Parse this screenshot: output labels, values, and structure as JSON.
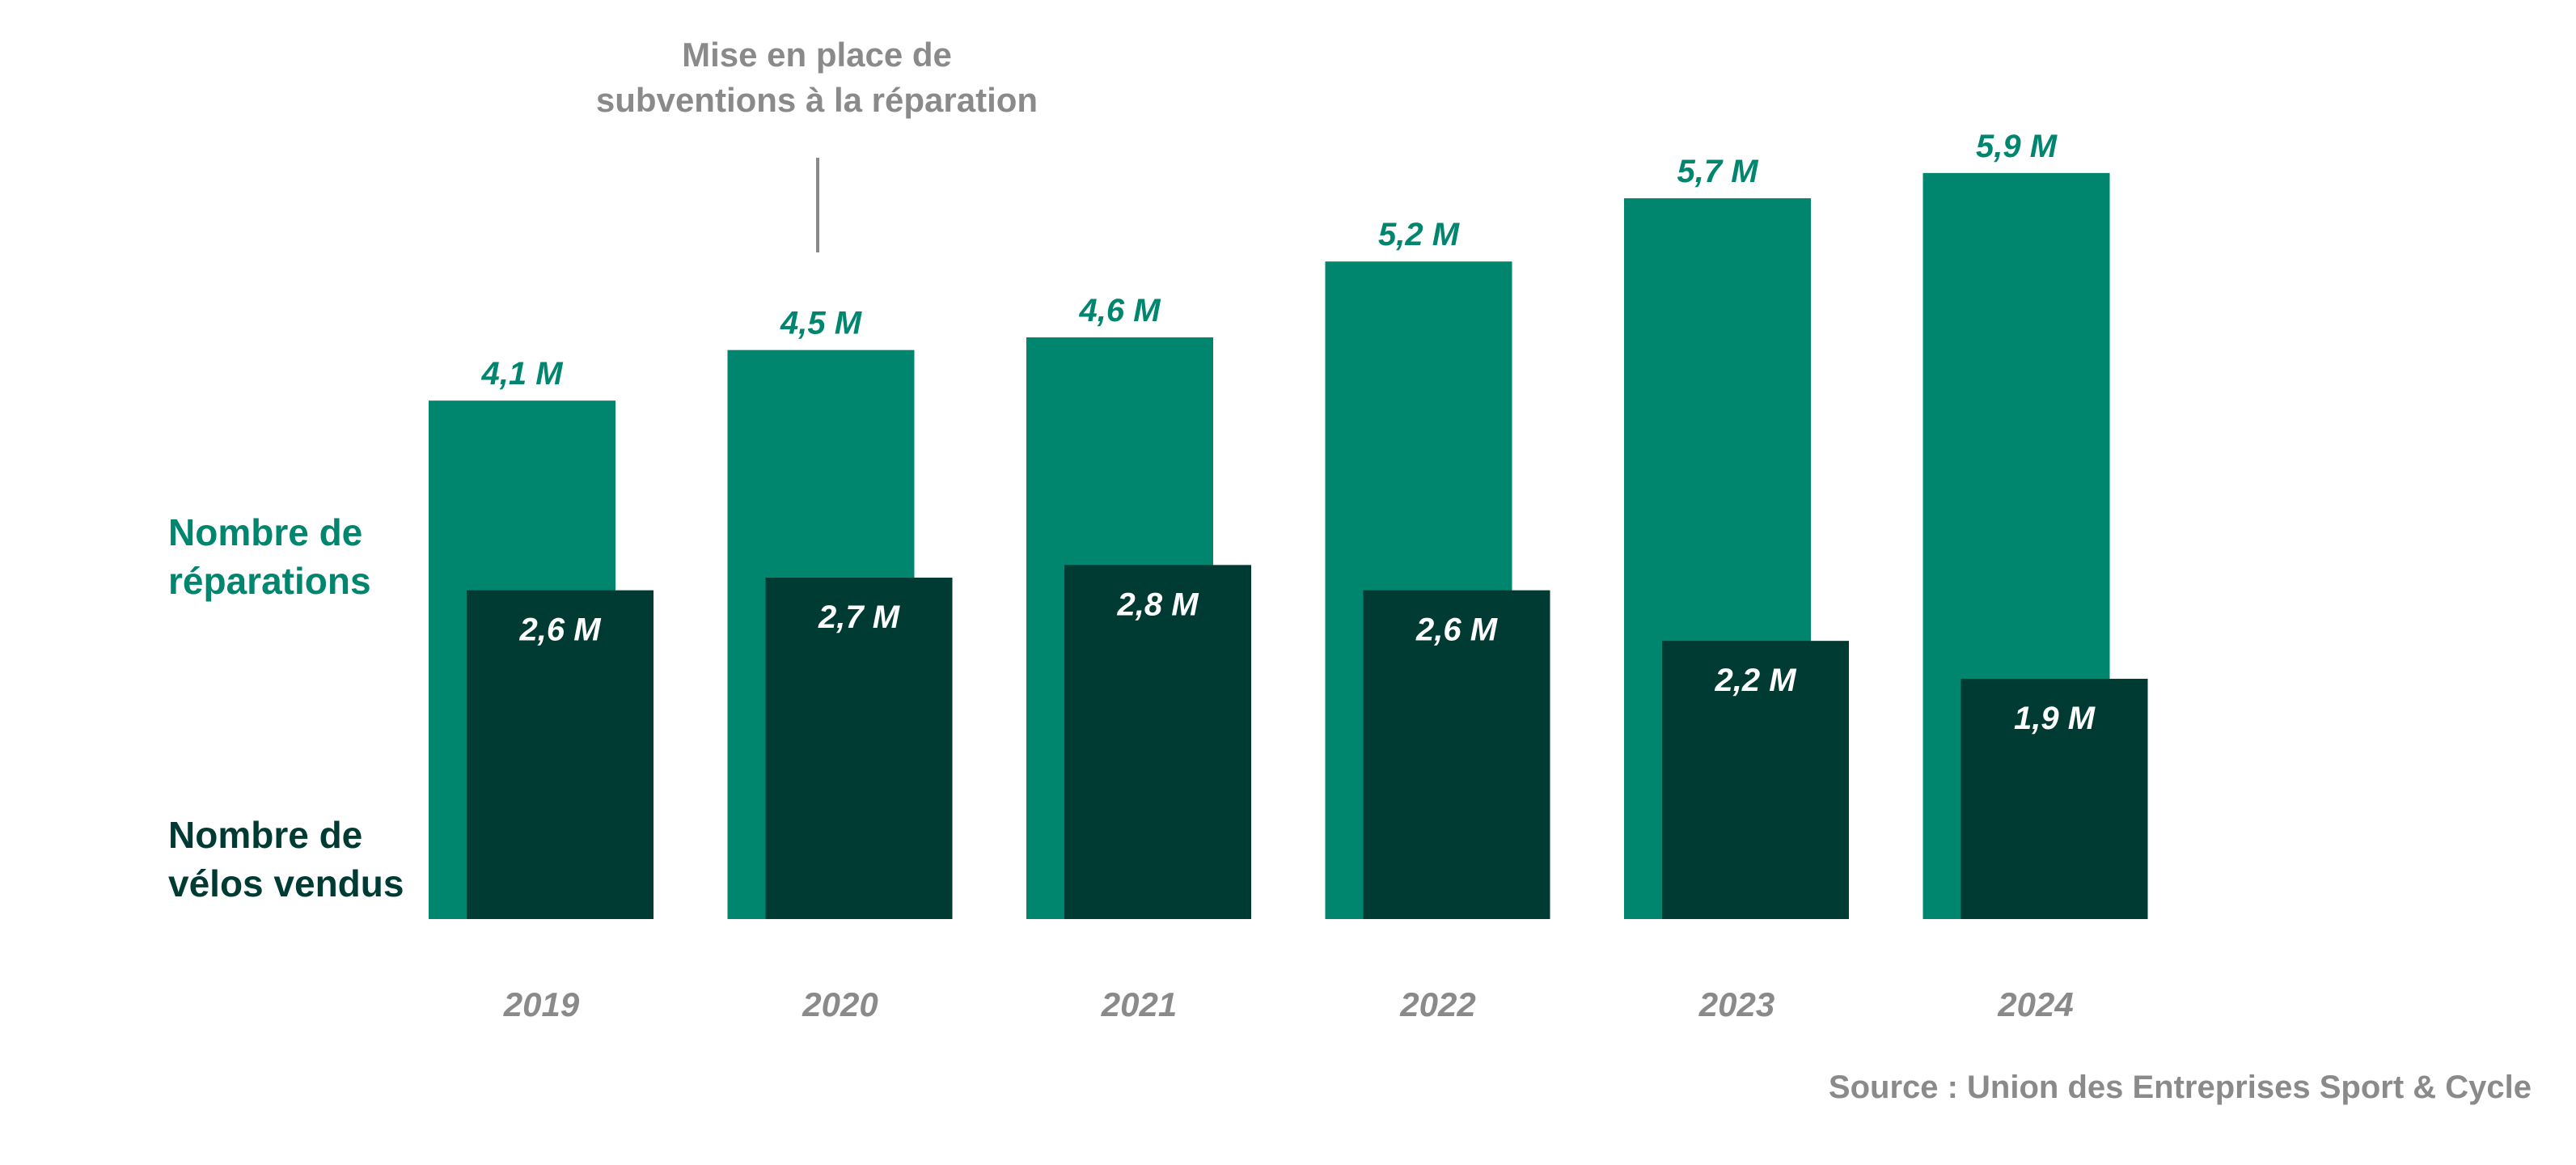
{
  "chart_data": {
    "type": "bar",
    "categories": [
      "2019",
      "2020",
      "2021",
      "2022",
      "2023",
      "2024"
    ],
    "series": [
      {
        "name": "Nombre de réparations",
        "values": [
          4.1,
          4.5,
          4.6,
          5.2,
          5.7,
          5.9
        ],
        "labels": [
          "4,1 M",
          "4,5 M",
          "4,6 M",
          "5,2 M",
          "5,7 M",
          "5,9 M"
        ],
        "color": "#00856F"
      },
      {
        "name": "Nombre de vélos vendus",
        "values": [
          2.6,
          2.7,
          2.8,
          2.6,
          2.2,
          1.9
        ],
        "labels": [
          "2,6 M",
          "2,7 M",
          "2,8 M",
          "2,6 M",
          "2,2 M",
          "1,9 M"
        ],
        "color": "#003B33"
      }
    ],
    "annotation": {
      "category": "2020",
      "text_line1": "Mise en place de",
      "text_line2": "subventions à la réparation"
    },
    "source": "Source : Union des Entreprises Sport & Cycle",
    "legend_placement": "left",
    "grid": false,
    "ylim": [
      0,
      6
    ]
  },
  "legend": {
    "repairs_line1": "Nombre de",
    "repairs_line2": "réparations",
    "sales_line1": "Nombre de",
    "sales_line2": "vélos vendus"
  }
}
